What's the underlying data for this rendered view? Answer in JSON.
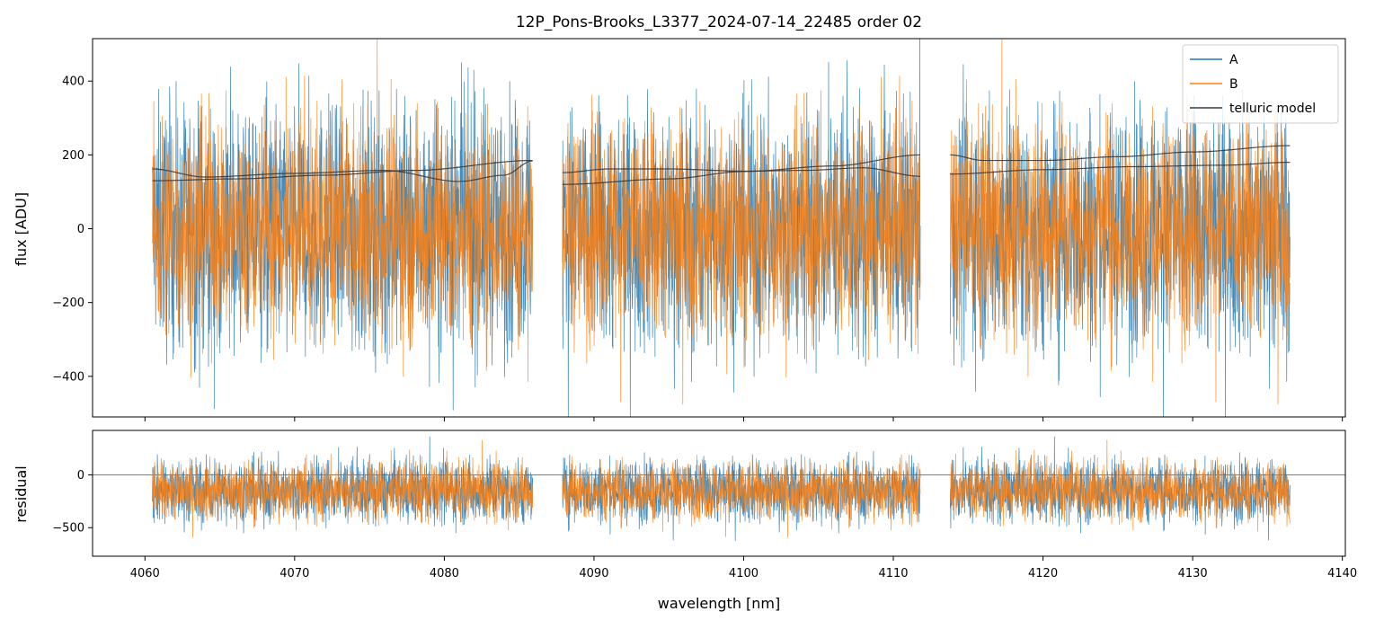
{
  "chart_data": {
    "type": "line",
    "title": "12P_Pons-Brooks_L3377_2024-07-14_22485  order 02",
    "xlabel": "wavelength [nm]",
    "xlim": [
      4056.5,
      4140.2
    ],
    "x_ticks": [
      4060,
      4070,
      4080,
      4090,
      4100,
      4110,
      4120,
      4130,
      4140
    ],
    "x_tick_labels": [
      "4060",
      "4070",
      "4080",
      "4090",
      "4100",
      "4110",
      "4120",
      "4130",
      "4140"
    ],
    "segments": [
      [
        4060.5,
        4085.9
      ],
      [
        4087.9,
        4111.8
      ],
      [
        4113.8,
        4136.5
      ]
    ],
    "legend_placement": "top-right",
    "grid": false,
    "panels": [
      {
        "id": "flux",
        "ylabel": "flux [ADU]",
        "ylim": [
          -510,
          515
        ],
        "y_ticks": [
          400,
          200,
          0,
          -200,
          -400
        ],
        "y_tick_labels": [
          "400",
          "200",
          "0",
          "−200",
          "−400"
        ],
        "series": [
          {
            "name": "A",
            "color": "#1f77b4",
            "kind": "noise",
            "noise_sigma": 165
          },
          {
            "name": "B",
            "color": "#ff7f0e",
            "kind": "noise",
            "noise_sigma": 150
          },
          {
            "name": "telluric model",
            "color": "#3a3a3a",
            "kind": "curves",
            "curves": [
              [
                [
                  4060.5,
                  162
                ],
                [
                  4064,
                  140
                ],
                [
                  4070,
                  150
                ],
                [
                  4076,
                  158
                ],
                [
                  4081,
                  128
                ],
                [
                  4084,
                  145
                ],
                [
                  4085.9,
                  184
                ]
              ],
              [
                [
                  4060.5,
                  130
                ],
                [
                  4066,
                  135
                ],
                [
                  4072,
                  145
                ],
                [
                  4078,
                  158
                ],
                [
                  4085.9,
                  185
                ]
              ],
              [
                [
                  4087.9,
                  152
                ],
                [
                  4091,
                  162
                ],
                [
                  4095,
                  162
                ],
                [
                  4100,
                  156
                ],
                [
                  4104,
                  158
                ],
                [
                  4108,
                  165
                ],
                [
                  4111.8,
                  142
                ]
              ],
              [
                [
                  4087.9,
                  120
                ],
                [
                  4095,
                  135
                ],
                [
                  4100,
                  155
                ],
                [
                  4106,
                  170
                ],
                [
                  4111.8,
                  200
                ]
              ],
              [
                [
                  4113.8,
                  200
                ],
                [
                  4116,
                  185
                ],
                [
                  4120,
                  185
                ],
                [
                  4125,
                  195
                ],
                [
                  4130,
                  208
                ],
                [
                  4136.5,
                  225
                ]
              ],
              [
                [
                  4113.8,
                  148
                ],
                [
                  4120,
                  160
                ],
                [
                  4126,
                  168
                ],
                [
                  4132,
                  172
                ],
                [
                  4136.5,
                  180
                ]
              ]
            ]
          }
        ]
      },
      {
        "id": "residual",
        "ylabel": "residual",
        "ylim": [
          -770,
          420
        ],
        "y_ticks": [
          0,
          -500
        ],
        "y_tick_labels": [
          "0",
          "−500"
        ],
        "zero_line": 0,
        "series": [
          {
            "name": "A",
            "color": "#1f77b4",
            "kind": "noise",
            "center": -150,
            "noise_sigma": 150
          },
          {
            "name": "B",
            "color": "#ff7f0e",
            "kind": "noise",
            "center": -150,
            "noise_sigma": 140
          }
        ]
      }
    ]
  }
}
